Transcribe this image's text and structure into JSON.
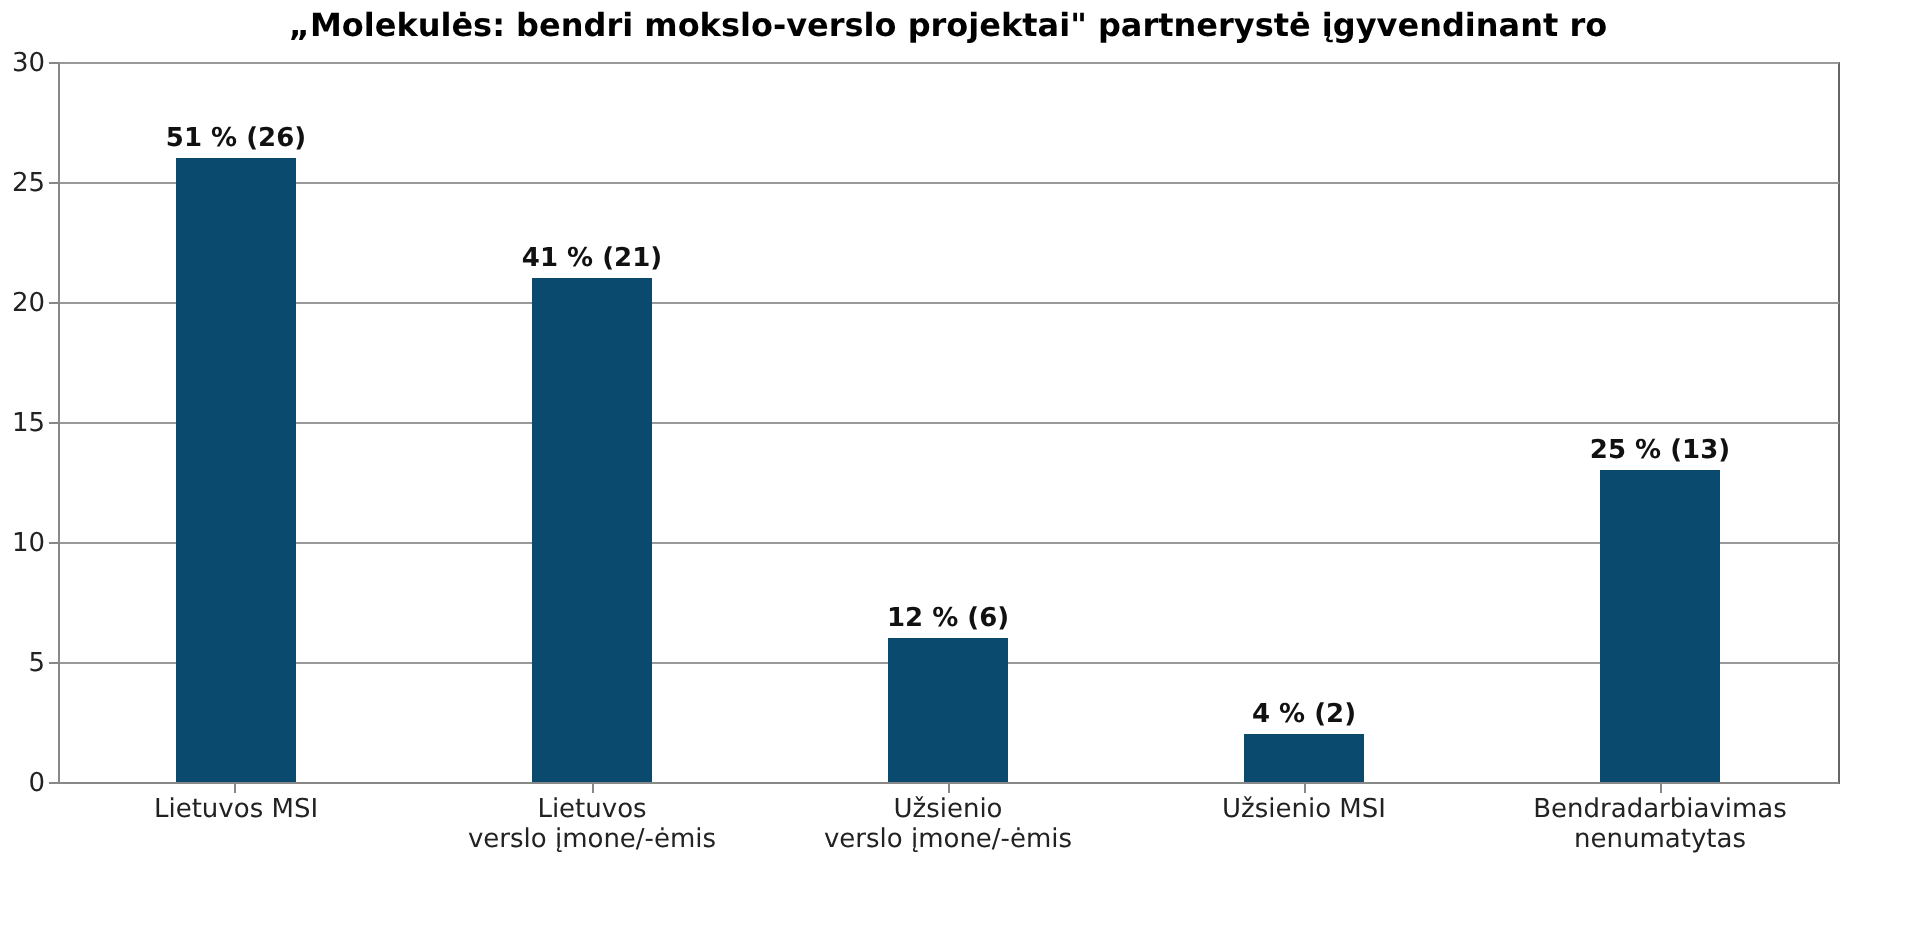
{
  "chart_data": {
    "type": "bar",
    "title": "„Molekulės: bendri mokslo-verslo projektai\" partnerystė įgyvendinant ro",
    "categories": [
      "Lietuvos MSI",
      "Lietuvos verslo įmone/-ėmis",
      "Užsienio verslo įmone/-ėmis",
      "Užsienio MSI",
      "Bendradarbiavimas nenumatytas"
    ],
    "values": [
      26,
      21,
      6,
      2,
      13
    ],
    "value_labels": [
      "51 % (26)",
      "41 % (21)",
      "12 % (6)",
      "4 % (2)",
      "25 % (13)"
    ],
    "color": "#0b4a6f",
    "ylim": [
      0,
      30
    ],
    "yticks": [
      0,
      5,
      10,
      15,
      20,
      25,
      30
    ],
    "grid": "y"
  }
}
